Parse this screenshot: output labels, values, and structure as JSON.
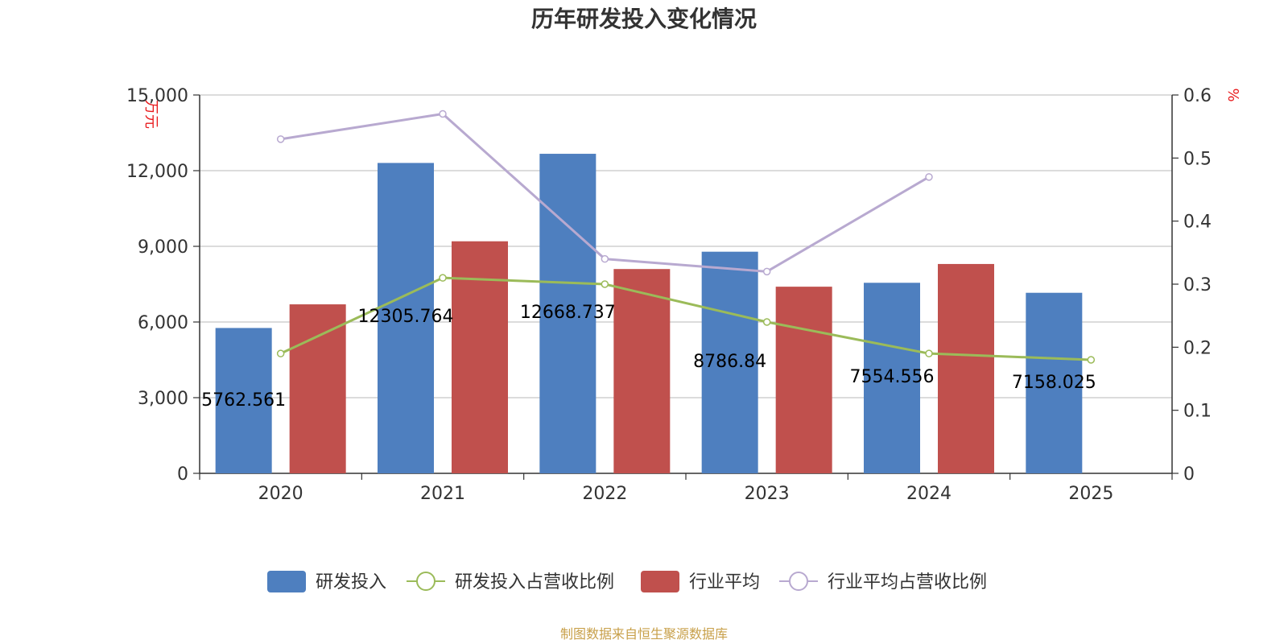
{
  "chart_data": {
    "type": "bar",
    "title": "历年研发投入变化情况",
    "categories": [
      "2020",
      "2021",
      "2022",
      "2023",
      "2024",
      "2025"
    ],
    "y_left": {
      "unit": "万元",
      "ticks": [
        "0",
        "3,000",
        "6,000",
        "9,000",
        "12,000",
        "15,000"
      ],
      "ylim": [
        0,
        15000
      ]
    },
    "y_right": {
      "unit": "%",
      "ticks": [
        "0",
        "0.1",
        "0.2",
        "0.3",
        "0.4",
        "0.5",
        "0.6"
      ],
      "ylim": [
        0,
        0.6
      ]
    },
    "series": [
      {
        "name": "研发投入",
        "type": "bar",
        "axis": "left",
        "color": "#4e7fbf",
        "values": [
          5762.561,
          12305.764,
          12668.737,
          8786.84,
          7554.556,
          7158.025
        ],
        "labels": [
          "5762.561",
          "12305.764",
          "12668.737",
          "8786.84",
          "7554.556",
          "7158.025"
        ]
      },
      {
        "name": "研发投入占营收比例",
        "type": "line",
        "axis": "right",
        "color": "#9bbb59",
        "values": [
          0.19,
          0.31,
          0.3,
          0.24,
          0.19,
          0.18
        ]
      },
      {
        "name": "行业平均",
        "type": "bar",
        "axis": "left",
        "color": "#c0504d",
        "values": [
          6700,
          9200,
          8100,
          7400,
          8300,
          null
        ]
      },
      {
        "name": "行业平均占营收比例",
        "type": "line",
        "axis": "right",
        "color": "#b8a9d0",
        "values": [
          0.53,
          0.57,
          0.34,
          0.32,
          0.47,
          null
        ]
      }
    ],
    "grid": true,
    "legend_position": "bottom"
  },
  "footer": {
    "source": "制图数据来自恒生聚源数据库"
  }
}
